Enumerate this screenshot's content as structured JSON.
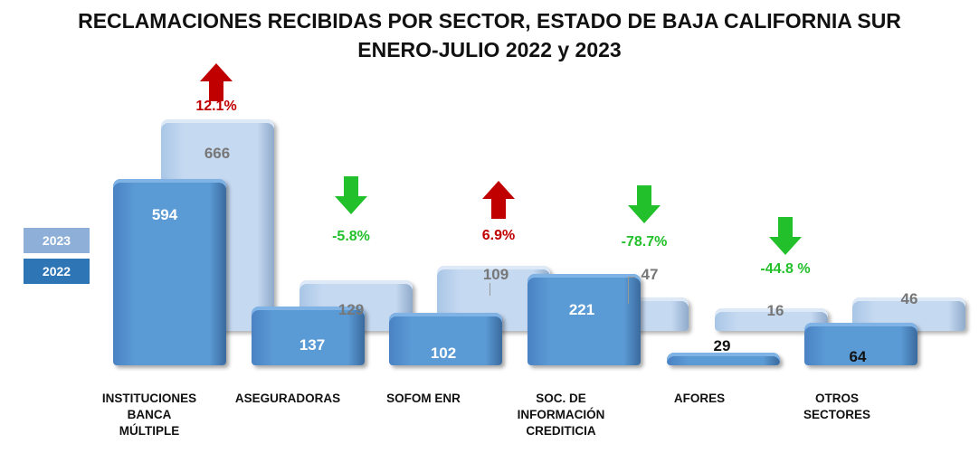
{
  "chart_data": {
    "type": "bar",
    "title": "RECLAMACIONES RECIBIDAS POR SECTOR, ESTADO DE BAJA CALIFORNIA SUR",
    "subtitle": "ENERO-JULIO 2022 y 2023",
    "categories": [
      [
        "INSTITUCIONES",
        "BANCA",
        "MÚLTIPLE"
      ],
      [
        "ASEGURADORAS"
      ],
      [
        "SOFOM ENR"
      ],
      [
        "SOC. DE",
        "INFORMACIÓN",
        "CREDITICIA"
      ],
      [
        "AFORES"
      ],
      [
        "OTROS",
        "SECTORES"
      ]
    ],
    "series": [
      {
        "name": "2022",
        "color": "#2e75b6",
        "values": [
          594,
          137,
          102,
          221,
          29,
          64
        ]
      },
      {
        "name": "2023",
        "color": "#8eb4e3",
        "values": [
          666,
          129,
          109,
          47,
          16,
          46
        ]
      }
    ],
    "changes": [
      {
        "label": "12.1%",
        "direction": "up",
        "color": "#c00000"
      },
      {
        "label": "-5.8%",
        "direction": "down",
        "color": "#22c02a"
      },
      {
        "label": "6.9%",
        "direction": "up",
        "color": "#c00000"
      },
      {
        "label": "-78.7%",
        "direction": "down",
        "color": "#22c02a"
      },
      {
        "label": "-44.8 %",
        "direction": "down",
        "color": "#22c02a"
      }
    ],
    "legend": [
      "2023",
      "2022"
    ],
    "legend_placement": "left",
    "grid": false
  }
}
